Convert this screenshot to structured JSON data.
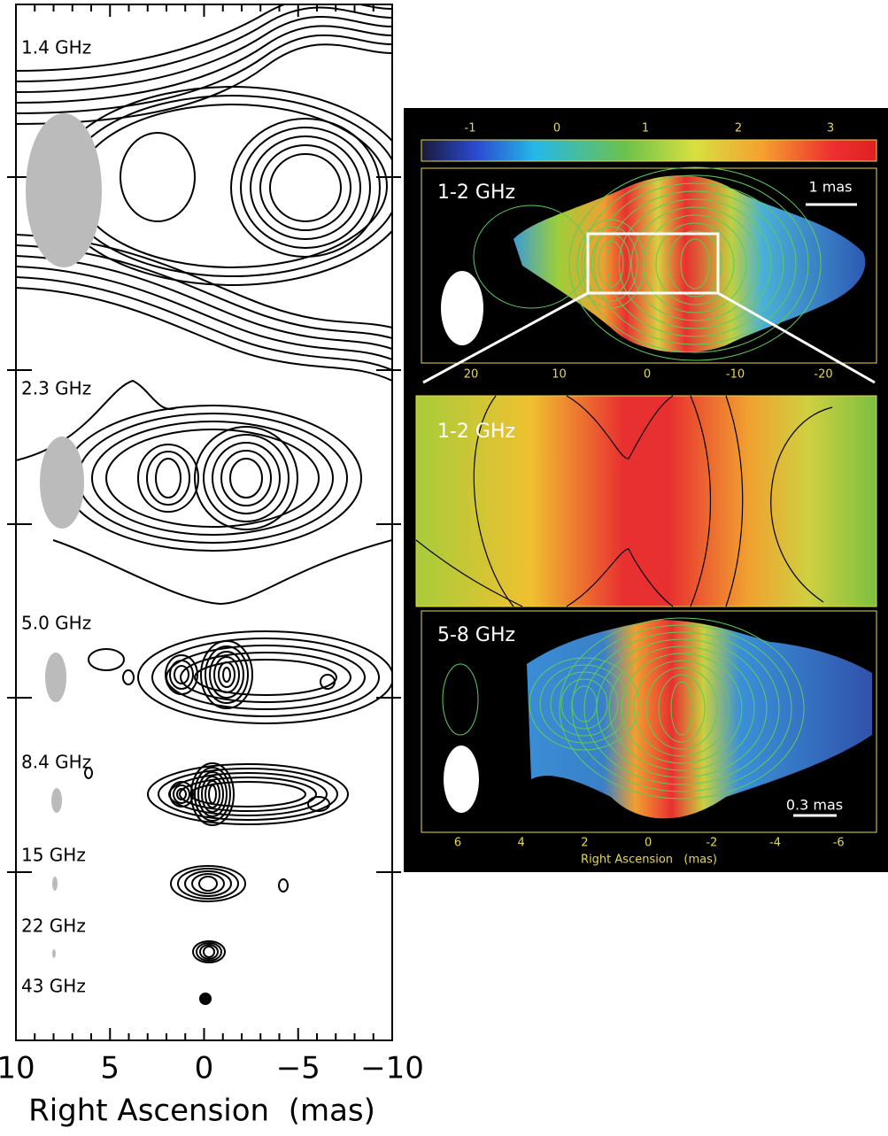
{
  "left_panel": {
    "bands": [
      "1.4 GHz",
      "2.3 GHz",
      "5.0 GHz",
      "8.4 GHz",
      "15 GHz",
      "22 GHz",
      "43 GHz"
    ],
    "x_ticks": [
      "10",
      "5",
      "0",
      "−5",
      "−10"
    ],
    "x_label": "Right Ascension  (mas)"
  },
  "right_panel": {
    "colorbar_ticks": [
      "-1",
      "0",
      "1",
      "2",
      "3"
    ],
    "top_map": {
      "label": "1-2 GHz",
      "scale": "1 mas",
      "x_ticks": [
        "20",
        "10",
        "0",
        "-10",
        "-20"
      ]
    },
    "zoom_map": {
      "label": "1-2 GHz"
    },
    "bottom_map": {
      "label": "5-8 GHz",
      "scale": "0.3 mas",
      "x_ticks": [
        "6",
        "4",
        "2",
        "0",
        "-2",
        "-4",
        "-6"
      ],
      "x_label": "Right Ascension   (mas)"
    }
  }
}
